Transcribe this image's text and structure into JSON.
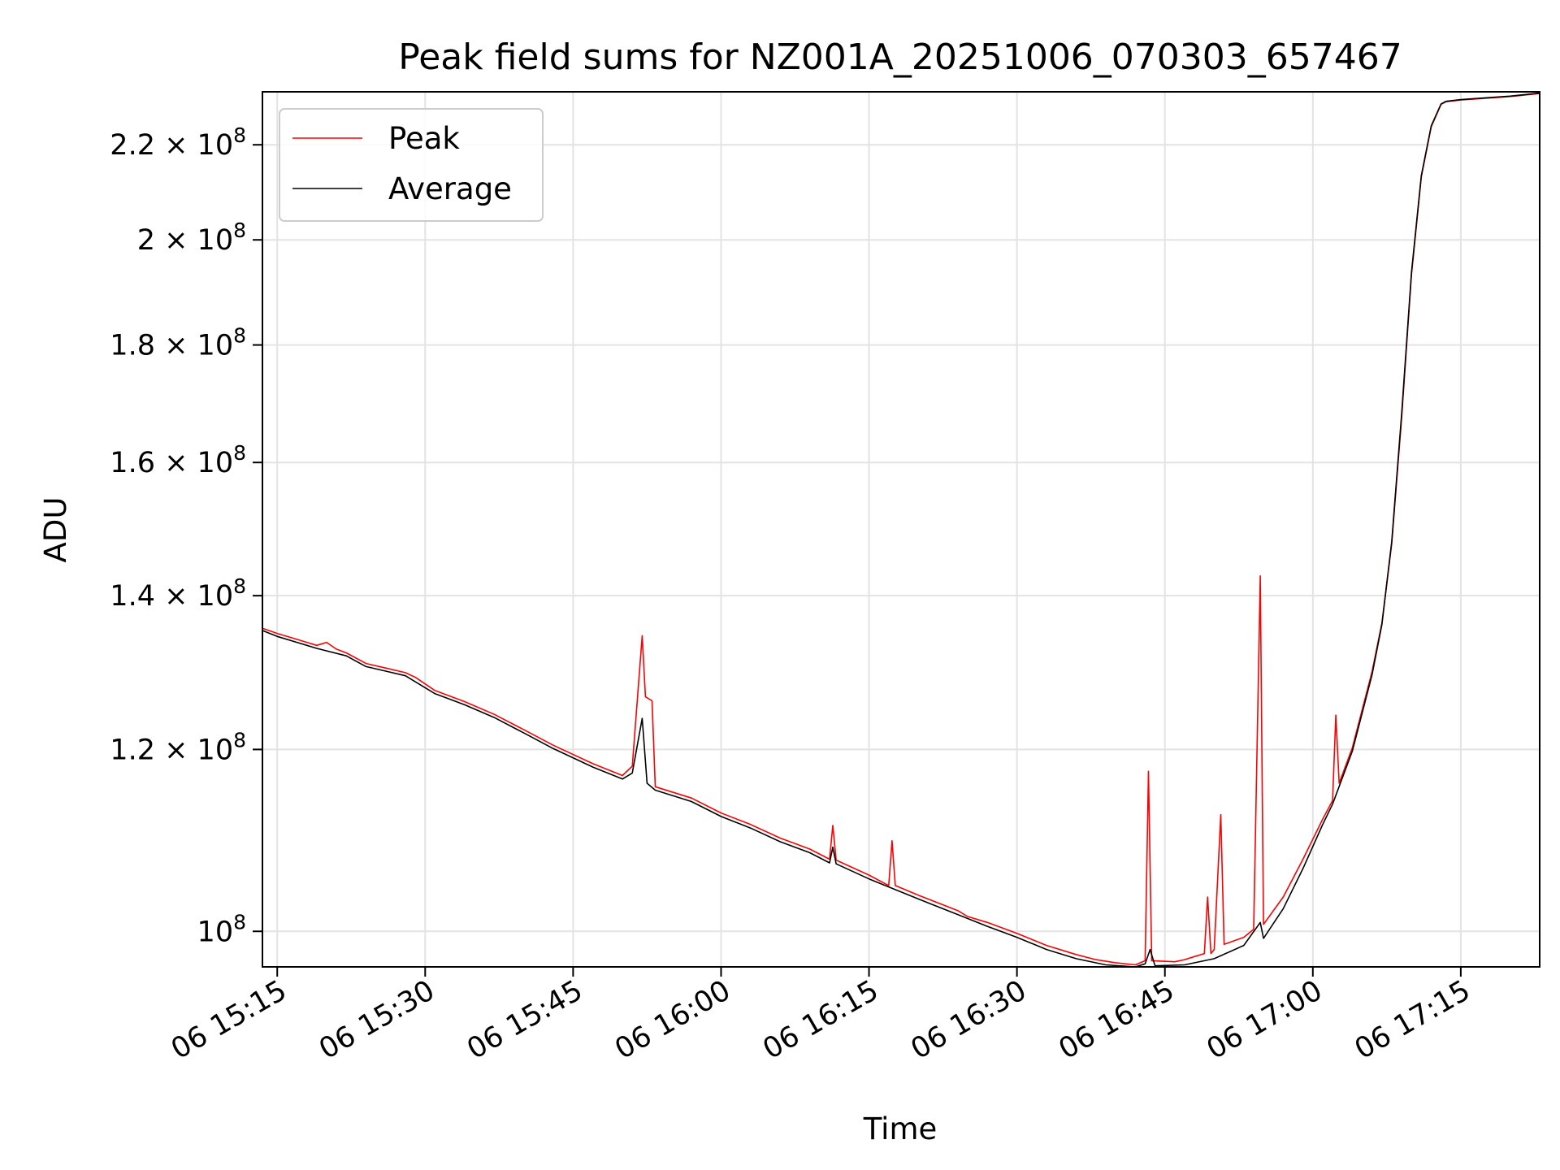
{
  "chart_data": {
    "type": "line",
    "title": "Peak field sums for NZ001A_20251006_070303_657467",
    "xlabel": "Time",
    "ylabel": "ADU",
    "yscale": "log",
    "grid": true,
    "legend_position": "upper-left",
    "xlim": [
      "06 15:13:30",
      "06 17:23:00"
    ],
    "ylim": [
      96500000,
      232000000
    ],
    "x_ticks": [
      "06 15:15",
      "06 15:30",
      "06 15:45",
      "06 16:00",
      "06 16:15",
      "06 16:30",
      "06 16:45",
      "06 17:00",
      "06 17:15"
    ],
    "y_ticks": [
      {
        "value": 100000000,
        "mantissa": "",
        "exp": "8",
        "base": "10"
      },
      {
        "value": 120000000,
        "mantissa": "1.2",
        "exp": "8",
        "base": "10"
      },
      {
        "value": 140000000,
        "mantissa": "1.4",
        "exp": "8",
        "base": "10"
      },
      {
        "value": 160000000,
        "mantissa": "1.6",
        "exp": "8",
        "base": "10"
      },
      {
        "value": 180000000,
        "mantissa": "1.8",
        "exp": "8",
        "base": "10"
      },
      {
        "value": 200000000,
        "mantissa": "2",
        "exp": "8",
        "base": "10"
      },
      {
        "value": 220000000,
        "mantissa": "2.2",
        "exp": "8",
        "base": "10"
      }
    ],
    "series": [
      {
        "name": "Peak",
        "color": "#ff0000",
        "points": [
          [
            "06 15:13:30",
            135500000
          ],
          [
            "06 15:15:00",
            134800000
          ],
          [
            "06 15:17:00",
            134000000
          ],
          [
            "06 15:19:00",
            133200000
          ],
          [
            "06 15:20:00",
            133600000
          ],
          [
            "06 15:21:00",
            132700000
          ],
          [
            "06 15:22:00",
            132200000
          ],
          [
            "06 15:24:00",
            130800000
          ],
          [
            "06 15:26:00",
            130200000
          ],
          [
            "06 15:28:00",
            129600000
          ],
          [
            "06 15:29:00",
            129000000
          ],
          [
            "06 15:31:00",
            127300000
          ],
          [
            "06 15:34:00",
            125900000
          ],
          [
            "06 15:37:00",
            124300000
          ],
          [
            "06 15:40:00",
            122400000
          ],
          [
            "06 15:43:00",
            120500000
          ],
          [
            "06 15:47:00",
            118300000
          ],
          [
            "06 15:50:00",
            116900000
          ],
          [
            "06 15:51:00",
            118000000
          ],
          [
            "06 15:52:00",
            134500000
          ],
          [
            "06 15:52:20",
            126500000
          ],
          [
            "06 15:53:00",
            126000000
          ],
          [
            "06 15:53:20",
            115600000
          ],
          [
            "06 15:57:00",
            114300000
          ],
          [
            "06 16:00:00",
            112600000
          ],
          [
            "06 16:03:00",
            111300000
          ],
          [
            "06 16:06:00",
            109800000
          ],
          [
            "06 16:09:00",
            108600000
          ],
          [
            "06 16:11:00",
            107500000
          ],
          [
            "06 16:11:20",
            111200000
          ],
          [
            "06 16:11:40",
            107400000
          ],
          [
            "06 16:15:00",
            105800000
          ],
          [
            "06 16:17:00",
            104700000
          ],
          [
            "06 16:17:20",
            109500000
          ],
          [
            "06 16:17:40",
            104700000
          ],
          [
            "06 16:20:00",
            103700000
          ],
          [
            "06 16:24:00",
            102100000
          ],
          [
            "06 16:25:00",
            101500000
          ],
          [
            "06 16:27:00",
            100900000
          ],
          [
            "06 16:30:00",
            99800000
          ],
          [
            "06 16:33:00",
            98600000
          ],
          [
            "06 16:36:00",
            97700000
          ],
          [
            "06 16:38:00",
            97200000
          ],
          [
            "06 16:40:00",
            96900000
          ],
          [
            "06 16:42:00",
            96700000
          ],
          [
            "06 16:43:00",
            97100000
          ],
          [
            "06 16:43:20",
            117400000
          ],
          [
            "06 16:43:40",
            97100000
          ],
          [
            "06 16:46:00",
            97000000
          ],
          [
            "06 16:47:00",
            97200000
          ],
          [
            "06 16:48:00",
            97500000
          ],
          [
            "06 16:49:00",
            97800000
          ],
          [
            "06 16:49:20",
            103500000
          ],
          [
            "06 16:49:40",
            97800000
          ],
          [
            "06 16:50:00",
            98200000
          ],
          [
            "06 16:50:40",
            112400000
          ],
          [
            "06 16:51:00",
            98700000
          ],
          [
            "06 16:53:00",
            99400000
          ],
          [
            "06 16:54:00",
            100200000
          ],
          [
            "06 16:54:40",
            142800000
          ],
          [
            "06 16:55:00",
            100700000
          ],
          [
            "06 16:57:00",
            103500000
          ],
          [
            "06 16:59:00",
            107500000
          ],
          [
            "06 17:01:00",
            111900000
          ],
          [
            "06 17:02:00",
            114000000
          ],
          [
            "06 17:02:20",
            124200000
          ],
          [
            "06 17:02:40",
            116000000
          ],
          [
            "06 17:04:00",
            120200000
          ],
          [
            "06 17:06:00",
            129700000
          ],
          [
            "06 17:07:00",
            136200000
          ],
          [
            "06 17:08:00",
            147500000
          ],
          [
            "06 17:09:00",
            167300000
          ],
          [
            "06 17:10:00",
            193100000
          ],
          [
            "06 17:11:00",
            213000000
          ],
          [
            "06 17:12:00",
            224000000
          ],
          [
            "06 17:13:00",
            229100000
          ],
          [
            "06 17:13:30",
            229700000
          ],
          [
            "06 17:15:00",
            230100000
          ],
          [
            "06 17:20:00",
            230900000
          ],
          [
            "06 17:23:00",
            231600000
          ]
        ]
      },
      {
        "name": "Average",
        "color": "#000000",
        "points": [
          [
            "06 15:13:30",
            135200000
          ],
          [
            "06 15:15:00",
            134400000
          ],
          [
            "06 15:17:00",
            133600000
          ],
          [
            "06 15:19:00",
            132800000
          ],
          [
            "06 15:22:00",
            131800000
          ],
          [
            "06 15:24:00",
            130400000
          ],
          [
            "06 15:26:00",
            129800000
          ],
          [
            "06 15:28:00",
            129200000
          ],
          [
            "06 15:31:00",
            126900000
          ],
          [
            "06 15:34:00",
            125500000
          ],
          [
            "06 15:37:00",
            123900000
          ],
          [
            "06 15:40:00",
            122000000
          ],
          [
            "06 15:43:00",
            120100000
          ],
          [
            "06 15:47:00",
            117900000
          ],
          [
            "06 15:50:00",
            116500000
          ],
          [
            "06 15:51:00",
            117200000
          ],
          [
            "06 15:52:00",
            123800000
          ],
          [
            "06 15:52:30",
            116000000
          ],
          [
            "06 15:53:20",
            115200000
          ],
          [
            "06 15:57:00",
            113900000
          ],
          [
            "06 16:00:00",
            112200000
          ],
          [
            "06 16:03:00",
            110900000
          ],
          [
            "06 16:06:00",
            109400000
          ],
          [
            "06 16:09:00",
            108200000
          ],
          [
            "06 16:11:00",
            107100000
          ],
          [
            "06 16:11:20",
            108800000
          ],
          [
            "06 16:11:40",
            107000000
          ],
          [
            "06 16:15:00",
            105400000
          ],
          [
            "06 16:20:00",
            103300000
          ],
          [
            "06 16:24:00",
            101700000
          ],
          [
            "06 16:27:00",
            100500000
          ],
          [
            "06 16:30:00",
            99400000
          ],
          [
            "06 16:33:00",
            98200000
          ],
          [
            "06 16:36:00",
            97300000
          ],
          [
            "06 16:39:00",
            96700000
          ],
          [
            "06 16:42:00",
            96500000
          ],
          [
            "06 16:43:00",
            96800000
          ],
          [
            "06 16:43:30",
            98200000
          ],
          [
            "06 16:44:00",
            96600000
          ],
          [
            "06 16:47:00",
            96700000
          ],
          [
            "06 16:50:00",
            97300000
          ],
          [
            "06 16:53:00",
            98600000
          ],
          [
            "06 16:54:40",
            100900000
          ],
          [
            "06 16:55:00",
            99300000
          ],
          [
            "06 16:57:00",
            102300000
          ],
          [
            "06 16:59:00",
            106500000
          ],
          [
            "06 17:01:00",
            111300000
          ],
          [
            "06 17:02:00",
            113600000
          ],
          [
            "06 17:04:00",
            119800000
          ],
          [
            "06 17:06:00",
            129300000
          ],
          [
            "06 17:07:00",
            136000000
          ],
          [
            "06 17:08:00",
            147800000
          ],
          [
            "06 17:09:00",
            168000000
          ],
          [
            "06 17:10:00",
            193600000
          ],
          [
            "06 17:11:00",
            213300000
          ],
          [
            "06 17:12:00",
            224200000
          ],
          [
            "06 17:13:00",
            229200000
          ],
          [
            "06 17:13:30",
            229800000
          ],
          [
            "06 17:15:00",
            230200000
          ],
          [
            "06 17:20:00",
            231000000
          ],
          [
            "06 17:23:00",
            231700000
          ]
        ]
      }
    ]
  }
}
